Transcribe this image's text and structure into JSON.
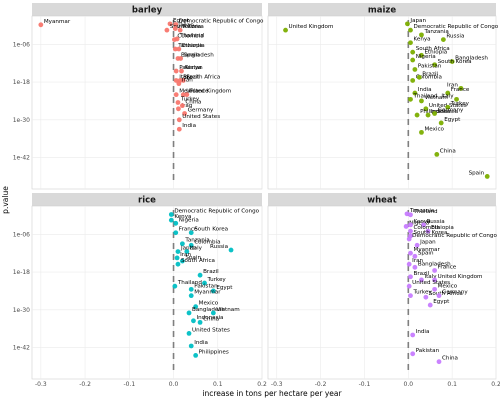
{
  "chart_data": {
    "type": "scatter",
    "facets": [
      "barley",
      "maize",
      "rice",
      "wheat"
    ],
    "xlabel": "increase in tons per hectare per year",
    "ylabel": "p.value",
    "xlim": [
      -0.32,
      0.2
    ],
    "x_ticks": [
      -0.3,
      -0.2,
      -0.1,
      0.0,
      0.1,
      0.2
    ],
    "x_tick_labels": [
      "-0.3",
      "-0.2",
      "-0.1",
      "0.0",
      "0.1",
      "0.2"
    ],
    "ylim_log10": [
      -52,
      3
    ],
    "y_scale": "log10, reversed",
    "y_ticks_log10": [
      -6,
      -18,
      -30,
      -42
    ],
    "y_tick_labels": [
      "1e-06",
      "1e-18",
      "1e-30",
      "1e-42"
    ],
    "reference_line_x": 0,
    "grid": true,
    "colors": {
      "barley": "#F8766D",
      "maize": "#7CAE00",
      "rice": "#00BFC4",
      "wheat": "#C77CFF",
      "strip": "#d9d9d9",
      "grid": "#ebebeb"
    },
    "panels": [
      {
        "facet": "barley",
        "points": [
          {
            "label": "Myanmar",
            "x": -0.3,
            "y_log10": 0.2
          },
          {
            "label": "Egypt",
            "x": -0.008,
            "y_log10": 0.5
          },
          {
            "label": "Democratic Republic of Congo",
            "x": 0.005,
            "y_log10": 0.3
          },
          {
            "label": "South Korea",
            "x": -0.015,
            "y_log10": -1.5
          },
          {
            "label": "Japan",
            "x": 0.004,
            "y_log10": -1.0
          },
          {
            "label": "Russia",
            "x": 0.015,
            "y_log10": -1.5
          },
          {
            "label": "Colombia",
            "x": 0.002,
            "y_log10": -4.5
          },
          {
            "label": "Thailand",
            "x": 0.008,
            "y_log10": -4.3
          },
          {
            "label": "Tanzania",
            "x": 0.004,
            "y_log10": -7.5
          },
          {
            "label": "Ethiopia",
            "x": 0.012,
            "y_log10": -7.5
          },
          {
            "label": "Bangladesh",
            "x": 0.01,
            "y_log10": -10.5
          },
          {
            "label": "Spain",
            "x": 0.016,
            "y_log10": -10.5
          },
          {
            "label": "Pakistan",
            "x": 0.006,
            "y_log10": -14.5
          },
          {
            "label": "Kenya",
            "x": 0.018,
            "y_log10": -14.5
          },
          {
            "label": "Italy",
            "x": 0.006,
            "y_log10": -17.5
          },
          {
            "label": "Brazil",
            "x": 0.015,
            "y_log10": -17.5
          },
          {
            "label": "South Africa",
            "x": 0.022,
            "y_log10": -17.5
          },
          {
            "label": "Iran",
            "x": 0.012,
            "y_log10": -18.5
          },
          {
            "label": "Mexico",
            "x": 0.006,
            "y_log10": -22.0
          },
          {
            "label": "United Kingdom",
            "x": 0.022,
            "y_log10": -22.0
          },
          {
            "label": "France",
            "x": 0.03,
            "y_log10": -22.0
          },
          {
            "label": "Turkey",
            "x": 0.01,
            "y_log10": -24.5
          },
          {
            "label": "Iraq",
            "x": 0.011,
            "y_log10": -26.5
          },
          {
            "label": "China",
            "x": 0.02,
            "y_log10": -25.5
          },
          {
            "label": "Germany",
            "x": 0.025,
            "y_log10": -28.0
          },
          {
            "label": "United States",
            "x": 0.013,
            "y_log10": -30.0
          },
          {
            "label": "India",
            "x": 0.013,
            "y_log10": -33.0
          }
        ]
      },
      {
        "facet": "maize",
        "points": [
          {
            "label": "United Kingdom",
            "x": -0.28,
            "y_log10": -1.5
          },
          {
            "label": "Japan",
            "x": -0.002,
            "y_log10": 0.5
          },
          {
            "label": "Democratic Republic of Congo",
            "x": 0.005,
            "y_log10": -1.5
          },
          {
            "label": "Tanzania",
            "x": 0.03,
            "y_log10": -3.0
          },
          {
            "label": "Russia",
            "x": 0.08,
            "y_log10": -4.5
          },
          {
            "label": "Kenya",
            "x": 0.005,
            "y_log10": -5.5
          },
          {
            "label": "South Africa",
            "x": 0.01,
            "y_log10": -8.5
          },
          {
            "label": "Ethiopia",
            "x": 0.03,
            "y_log10": -9.5
          },
          {
            "label": "Nigeria",
            "x": 0.01,
            "y_log10": -11.0
          },
          {
            "label": "Bangladesh",
            "x": 0.1,
            "y_log10": -11.5
          },
          {
            "label": "South Korea",
            "x": 0.06,
            "y_log10": -12.5
          },
          {
            "label": "Pakistan",
            "x": 0.015,
            "y_log10": -14.0
          },
          {
            "label": "Colombia",
            "x": 0.01,
            "y_log10": -17.5
          },
          {
            "label": "Brazil",
            "x": 0.025,
            "y_log10": -16.5
          },
          {
            "label": "Iran",
            "x": 0.12,
            "y_log10": -20.0
          },
          {
            "label": "India",
            "x": 0.015,
            "y_log10": -21.5
          },
          {
            "label": "France",
            "x": 0.09,
            "y_log10": -21.5
          },
          {
            "label": "Thailand",
            "x": 0.005,
            "y_log10": -23.5
          },
          {
            "label": "Vietnam",
            "x": 0.03,
            "y_log10": -24.0
          },
          {
            "label": "Italy",
            "x": 0.11,
            "y_log10": -23.5
          },
          {
            "label": "United States",
            "x": 0.04,
            "y_log10": -26.5
          },
          {
            "label": "Turkey",
            "x": 0.09,
            "y_log10": -26.0
          },
          {
            "label": "Philippines",
            "x": 0.02,
            "y_log10": -28.5
          },
          {
            "label": "Indonesia",
            "x": 0.045,
            "y_log10": -28.5
          },
          {
            "label": "Germany",
            "x": 0.06,
            "y_log10": -28.0
          },
          {
            "label": "Egypt",
            "x": 0.075,
            "y_log10": -31.0
          },
          {
            "label": "Mexico",
            "x": 0.03,
            "y_log10": -34.0
          },
          {
            "label": "China",
            "x": 0.065,
            "y_log10": -41.0
          },
          {
            "label": "Spain",
            "x": 0.18,
            "y_log10": -48.0
          }
        ]
      },
      {
        "facet": "rice",
        "points": [
          {
            "label": "Democratic Republic of Congo",
            "x": -0.005,
            "y_log10": 0.3
          },
          {
            "label": "Kenya",
            "x": -0.005,
            "y_log10": -1.5
          },
          {
            "label": "Nigeria",
            "x": 0.005,
            "y_log10": -2.5
          },
          {
            "label": "France",
            "x": 0.005,
            "y_log10": -5.5
          },
          {
            "label": "South Korea",
            "x": 0.04,
            "y_log10": -5.5
          },
          {
            "label": "Tanzania",
            "x": 0.02,
            "y_log10": -9.0
          },
          {
            "label": "Colombia",
            "x": 0.04,
            "y_log10": -9.5
          },
          {
            "label": "Russia",
            "x": 0.13,
            "y_log10": -11.0
          },
          {
            "label": "Japan",
            "x": 0.01,
            "y_log10": -11.5
          },
          {
            "label": "Italy",
            "x": 0.03,
            "y_log10": -11.5
          },
          {
            "label": "Iran",
            "x": 0.008,
            "y_log10": -13.5
          },
          {
            "label": "Spain",
            "x": 0.02,
            "y_log10": -14.5
          },
          {
            "label": "South Africa",
            "x": 0.01,
            "y_log10": -15.5
          },
          {
            "label": "Brazil",
            "x": 0.06,
            "y_log10": -19.0
          },
          {
            "label": "Turkey",
            "x": 0.07,
            "y_log10": -21.5
          },
          {
            "label": "Thailand",
            "x": 0.003,
            "y_log10": -22.5
          },
          {
            "label": "Pakistan",
            "x": 0.04,
            "y_log10": -23.5
          },
          {
            "label": "Egypt",
            "x": 0.09,
            "y_log10": -24.0
          },
          {
            "label": "Myanmar",
            "x": 0.04,
            "y_log10": -25.5
          },
          {
            "label": "Mexico",
            "x": 0.05,
            "y_log10": -29.0
          },
          {
            "label": "Bangladesh",
            "x": 0.035,
            "y_log10": -31.0
          },
          {
            "label": "Vietnam",
            "x": 0.09,
            "y_log10": -31.0
          },
          {
            "label": "Indonesia",
            "x": 0.045,
            "y_log10": -33.5
          },
          {
            "label": "China",
            "x": 0.06,
            "y_log10": -34.0
          },
          {
            "label": "United States",
            "x": 0.035,
            "y_log10": -37.5
          },
          {
            "label": "India",
            "x": 0.04,
            "y_log10": -41.5
          },
          {
            "label": "Philippines",
            "x": 0.05,
            "y_log10": -44.5
          }
        ]
      },
      {
        "facet": "wheat",
        "points": [
          {
            "label": "Tanzania",
            "x": -0.003,
            "y_log10": 0.5
          },
          {
            "label": "Thailand",
            "x": 0.005,
            "y_log10": 0.2
          },
          {
            "label": "Nigeria",
            "x": -0.005,
            "y_log10": -3.5
          },
          {
            "label": "Kenya",
            "x": 0.005,
            "y_log10": -3.0
          },
          {
            "label": "Russia",
            "x": 0.035,
            "y_log10": -3.0
          },
          {
            "label": "Colombia",
            "x": 0.005,
            "y_log10": -5.0
          },
          {
            "label": "Ethiopia",
            "x": 0.045,
            "y_log10": -5.0
          },
          {
            "label": "South Korea",
            "x": 0.005,
            "y_log10": -6.5
          },
          {
            "label": "Democratic Republic of Congo",
            "x": 0.002,
            "y_log10": -7.5
          },
          {
            "label": "Japan",
            "x": 0.02,
            "y_log10": -9.5
          },
          {
            "label": "Myanmar",
            "x": 0.005,
            "y_log10": -12.0
          },
          {
            "label": "Spain",
            "x": 0.015,
            "y_log10": -13.0
          },
          {
            "label": "Iran",
            "x": 0.002,
            "y_log10": -15.5
          },
          {
            "label": "Bangladesh",
            "x": 0.015,
            "y_log10": -16.5
          },
          {
            "label": "France",
            "x": 0.06,
            "y_log10": -17.5
          },
          {
            "label": "Brazil",
            "x": 0.005,
            "y_log10": -19.5
          },
          {
            "label": "Italy",
            "x": 0.03,
            "y_log10": -20.5
          },
          {
            "label": "United Kingdom",
            "x": 0.06,
            "y_log10": -20.5
          },
          {
            "label": "United States",
            "x": 0.002,
            "y_log10": -22.5
          },
          {
            "label": "Mexico",
            "x": 0.06,
            "y_log10": -23.5
          },
          {
            "label": "Turkey",
            "x": 0.005,
            "y_log10": -25.5
          },
          {
            "label": "South Africa",
            "x": 0.04,
            "y_log10": -26.0
          },
          {
            "label": "Germany",
            "x": 0.07,
            "y_log10": -25.5
          },
          {
            "label": "Egypt",
            "x": 0.05,
            "y_log10": -28.5
          },
          {
            "label": "India",
            "x": 0.01,
            "y_log10": -38.0
          },
          {
            "label": "Pakistan",
            "x": 0.01,
            "y_log10": -44.0
          },
          {
            "label": "China",
            "x": 0.07,
            "y_log10": -46.5
          }
        ]
      }
    ]
  }
}
